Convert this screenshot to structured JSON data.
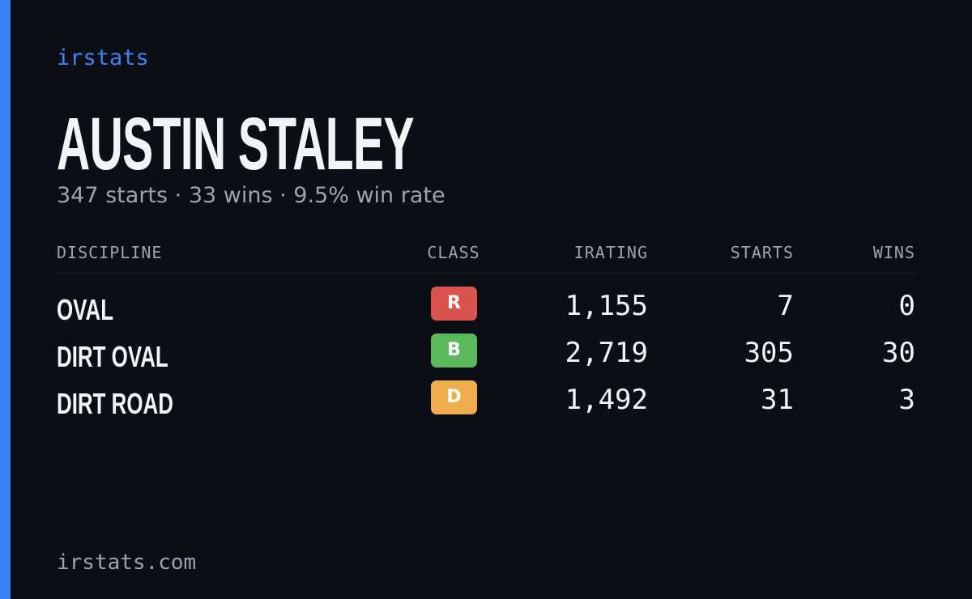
{
  "header": {
    "brand": "irstats",
    "name": "AUSTIN STALEY",
    "summary": "347 starts · 33 wins · 9.5% win rate"
  },
  "table": {
    "columns": [
      "DISCIPLINE",
      "CLASS",
      "IRATING",
      "STARTS",
      "WINS"
    ],
    "rows": [
      {
        "discipline": "OVAL",
        "class": "R",
        "class_color": "#d9534f",
        "irating": "1,155",
        "starts": "7",
        "wins": "0"
      },
      {
        "discipline": "DIRT OVAL",
        "class": "B",
        "class_color": "#5cb85c",
        "irating": "2,719",
        "starts": "305",
        "wins": "30"
      },
      {
        "discipline": "DIRT ROAD",
        "class": "D",
        "class_color": "#f0ad4e",
        "irating": "1,492",
        "starts": "31",
        "wins": "3"
      }
    ]
  },
  "footer": {
    "url": "irstats.com"
  }
}
